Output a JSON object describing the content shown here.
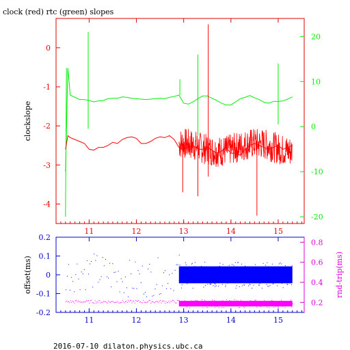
{
  "title": "clock (red) rtc (green) slopes",
  "footer": "2016-07-10  dilaton.physics.ubc.ca",
  "colors": {
    "axis": "#e00000",
    "clock": "#ff0000",
    "rtc": "#00ee00",
    "offset": "#0000ff",
    "rndtrip": "#ff00ff",
    "axis_bottom": "#0000cc",
    "axis_bottom_right": "#dd00dd"
  },
  "chart_data": [
    {
      "type": "line",
      "title": "clock (red) rtc (green) slopes",
      "xlabel": "",
      "ylabel": "clockslope",
      "xlim": [
        10.3,
        15.55
      ],
      "ylim": [
        -4.5,
        0.75
      ],
      "y2lim": [
        -21.5,
        24
      ],
      "xticks": [
        "11",
        "12",
        "13",
        "14",
        "15"
      ],
      "yticks": [
        "0",
        "-1",
        "-2",
        "-3",
        "-4"
      ],
      "y2ticks": [
        "20",
        "10",
        "0",
        "-10",
        "-20"
      ],
      "series": [
        {
          "name": "clock (red)",
          "axis": "left",
          "x": [
            10.5,
            10.55,
            10.6,
            10.7,
            10.8,
            10.9,
            11.0,
            11.1,
            11.2,
            11.3,
            11.4,
            11.5,
            11.6,
            11.7,
            11.8,
            11.9,
            12.0,
            12.1,
            12.2,
            12.3,
            12.4,
            12.5,
            12.6,
            12.7,
            12.8,
            12.9,
            13.0,
            13.1,
            13.2,
            13.3,
            13.4,
            13.5,
            13.6,
            13.7,
            13.8,
            13.9,
            14.0,
            14.1,
            14.2,
            14.3,
            14.4,
            14.5,
            14.6,
            14.7,
            14.8,
            14.9,
            15.0,
            15.1,
            15.2,
            15.3
          ],
          "values": [
            -2.6,
            -2.25,
            -2.3,
            -2.35,
            -2.4,
            -2.45,
            -2.6,
            -2.62,
            -2.55,
            -2.55,
            -2.5,
            -2.42,
            -2.45,
            -2.35,
            -2.3,
            -2.28,
            -2.32,
            -2.45,
            -2.45,
            -2.4,
            -2.32,
            -2.28,
            -2.3,
            -2.25,
            -2.35,
            -2.55,
            -2.6,
            -2.55,
            -2.5,
            -2.6,
            -2.6,
            -2.55,
            -2.62,
            -2.7,
            -2.65,
            -2.55,
            -2.7,
            -2.7,
            -2.75,
            -2.6,
            -2.5,
            -2.45,
            -2.5,
            -2.55,
            -2.6,
            -2.55,
            -2.5,
            -2.6,
            -2.55,
            -2.5
          ]
        },
        {
          "name": "rtc (green)",
          "axis": "right",
          "x": [
            10.5,
            10.55,
            10.6,
            10.7,
            10.8,
            10.9,
            11.0,
            11.1,
            11.2,
            11.3,
            11.4,
            11.5,
            11.6,
            11.7,
            11.8,
            11.9,
            12.0,
            12.1,
            12.2,
            12.3,
            12.4,
            12.5,
            12.6,
            12.7,
            12.8,
            12.9,
            13.0,
            13.1,
            13.2,
            13.3,
            13.4,
            13.5,
            13.6,
            13.7,
            13.8,
            13.9,
            14.0,
            14.1,
            14.2,
            14.3,
            14.4,
            14.5,
            14.6,
            14.7,
            14.8,
            14.9,
            15.0,
            15.1,
            15.2,
            15.3
          ],
          "values": [
            -10,
            13,
            7,
            6.5,
            6,
            6,
            5.8,
            5.5,
            5.7,
            5.8,
            6.2,
            6.3,
            6.3,
            6.6,
            6.5,
            6.3,
            6.2,
            6.1,
            6.0,
            6.1,
            6.2,
            6.3,
            6.2,
            6.5,
            6.7,
            7.0,
            5.2,
            5.0,
            5.5,
            6.2,
            6.8,
            6.8,
            6.3,
            5.8,
            5.2,
            4.8,
            4.8,
            5.5,
            6.2,
            6.5,
            6.9,
            6.4,
            6.0,
            5.4,
            5.2,
            5.6,
            5.6,
            5.7,
            6.1,
            6.6
          ]
        }
      ]
    },
    {
      "type": "scatter",
      "xlabel": "",
      "ylabel": "offset(ms)",
      "y2label": "rnd-trip(ms)",
      "xlim": [
        10.3,
        15.55
      ],
      "ylim": [
        -0.2,
        0.2
      ],
      "y2lim": [
        0.1,
        0.85
      ],
      "xticks": [
        "11",
        "12",
        "13",
        "14",
        "15"
      ],
      "yticks": [
        "0.2",
        "0.1",
        "0",
        "-0.1",
        "-0.2"
      ],
      "y2ticks": [
        "0.8",
        "0.6",
        "0.4",
        "0.2"
      ],
      "series": [
        {
          "name": "offset",
          "axis": "left",
          "x": [
            10.5,
            10.7,
            10.9,
            11.1,
            11.3,
            11.5,
            11.7,
            11.9,
            12.1,
            12.3,
            12.5,
            12.7,
            12.9,
            13.2,
            13.5,
            13.8,
            14.1,
            14.4,
            14.7,
            15.0,
            15.3
          ],
          "values": [
            0.05,
            -0.02,
            0.03,
            0.01,
            -0.03,
            0.04,
            0.02,
            -0.01,
            0.0,
            0.03,
            -0.02,
            0.02,
            0.0,
            0.01,
            -0.01,
            0.0,
            0.01,
            0.0,
            0.01,
            -0.01,
            0.0
          ]
        },
        {
          "name": "rnd-trip",
          "axis": "right",
          "x": [
            10.5,
            10.7,
            10.9,
            11.1,
            11.3,
            11.5,
            11.7,
            11.9,
            12.1,
            12.3,
            12.5,
            12.7,
            12.9,
            13.2,
            13.5,
            13.8,
            14.1,
            14.4,
            14.7,
            15.0,
            15.3
          ],
          "values": [
            0.22,
            0.21,
            0.22,
            0.2,
            0.21,
            0.2,
            0.21,
            0.22,
            0.2,
            0.21,
            0.2,
            0.21,
            0.2,
            0.18,
            0.19,
            0.18,
            0.19,
            0.18,
            0.19,
            0.18,
            0.19
          ]
        }
      ]
    }
  ]
}
